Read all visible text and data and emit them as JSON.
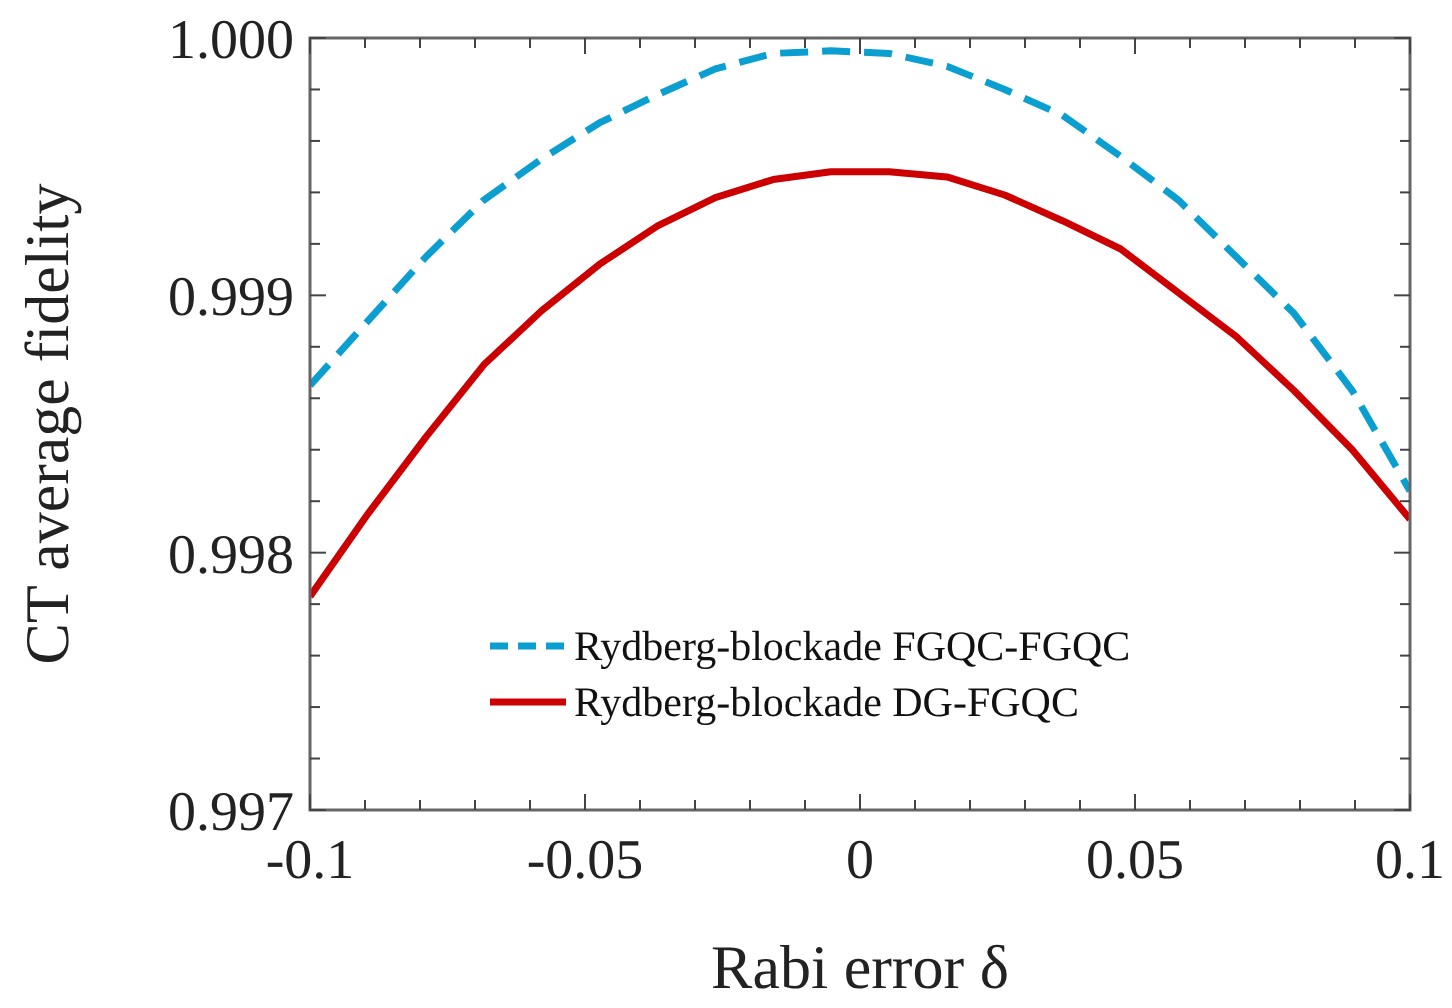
{
  "chart_data": {
    "type": "line",
    "xlabel": "Rabi error δ",
    "ylabel": "CT average fidelity",
    "x": [
      -0.1,
      -0.0895,
      -0.0789,
      -0.0684,
      -0.0579,
      -0.0474,
      -0.0368,
      -0.0263,
      -0.0158,
      -0.0053,
      0.0053,
      0.0158,
      0.0263,
      0.0368,
      0.0474,
      0.0579,
      0.0684,
      0.0789,
      0.0895,
      0.1
    ],
    "series": [
      {
        "name": "Rydberg-blockade FGQC-FGQC",
        "color": "#0a9fd0",
        "line_style": "dashed",
        "values": [
          0.99865,
          0.9989,
          0.99915,
          0.99937,
          0.99953,
          0.99967,
          0.99978,
          0.99988,
          0.99994,
          0.99995,
          0.99994,
          0.99989,
          0.9998,
          0.9997,
          0.99954,
          0.99937,
          0.99915,
          0.99893,
          0.99863,
          0.99824
        ]
      },
      {
        "name": "Rydberg-blockade DG-FGQC",
        "color": "#cc0000",
        "line_style": "solid",
        "values": [
          0.99783,
          0.99815,
          0.99845,
          0.99873,
          0.99894,
          0.99912,
          0.99927,
          0.99938,
          0.99945,
          0.99948,
          0.99948,
          0.99946,
          0.99939,
          0.99929,
          0.99918,
          0.99901,
          0.99884,
          0.99863,
          0.9984,
          0.99813
        ]
      }
    ],
    "xlim": [
      -0.1,
      0.1
    ],
    "xticks": [
      -0.1,
      {
        "value": -0.09,
        "label": null
      },
      {
        "value": -0.08,
        "label": null
      },
      {
        "value": -0.07,
        "label": null
      },
      {
        "value": -0.06,
        "label": null
      },
      -0.05,
      {
        "value": -0.04,
        "label": null
      },
      {
        "value": -0.03,
        "label": null
      },
      {
        "value": -0.02,
        "label": null
      },
      {
        "value": -0.01,
        "label": null
      },
      0,
      {
        "value": 0.01,
        "label": null
      },
      {
        "value": 0.02,
        "label": null
      },
      {
        "value": 0.03,
        "label": null
      },
      {
        "value": 0.04,
        "label": null
      },
      0.05,
      {
        "value": 0.06,
        "label": null
      },
      {
        "value": 0.07,
        "label": null
      },
      {
        "value": 0.08,
        "label": null
      },
      {
        "value": 0.09,
        "label": null
      },
      0.1
    ],
    "ylim": [
      0.997,
      1.0
    ],
    "yticks": [
      0.997,
      {
        "value": 0.9972,
        "label": null
      },
      {
        "value": 0.9974,
        "label": null
      },
      {
        "value": 0.9976,
        "label": null
      },
      {
        "value": 0.9978,
        "label": null
      },
      0.998,
      {
        "value": 0.9982,
        "label": null
      },
      {
        "value": 0.9984,
        "label": null
      },
      {
        "value": 0.9986,
        "label": null
      },
      {
        "value": 0.9988,
        "label": null
      },
      0.999,
      {
        "value": 0.9992,
        "label": null
      },
      {
        "value": 0.9994,
        "label": null
      },
      {
        "value": 0.9996,
        "label": null
      },
      {
        "value": 0.9998,
        "label": null
      },
      {
        "value": 1.0,
        "label": "1.000"
      }
    ],
    "grid": false,
    "legend": "bottom right",
    "marker": "none"
  }
}
